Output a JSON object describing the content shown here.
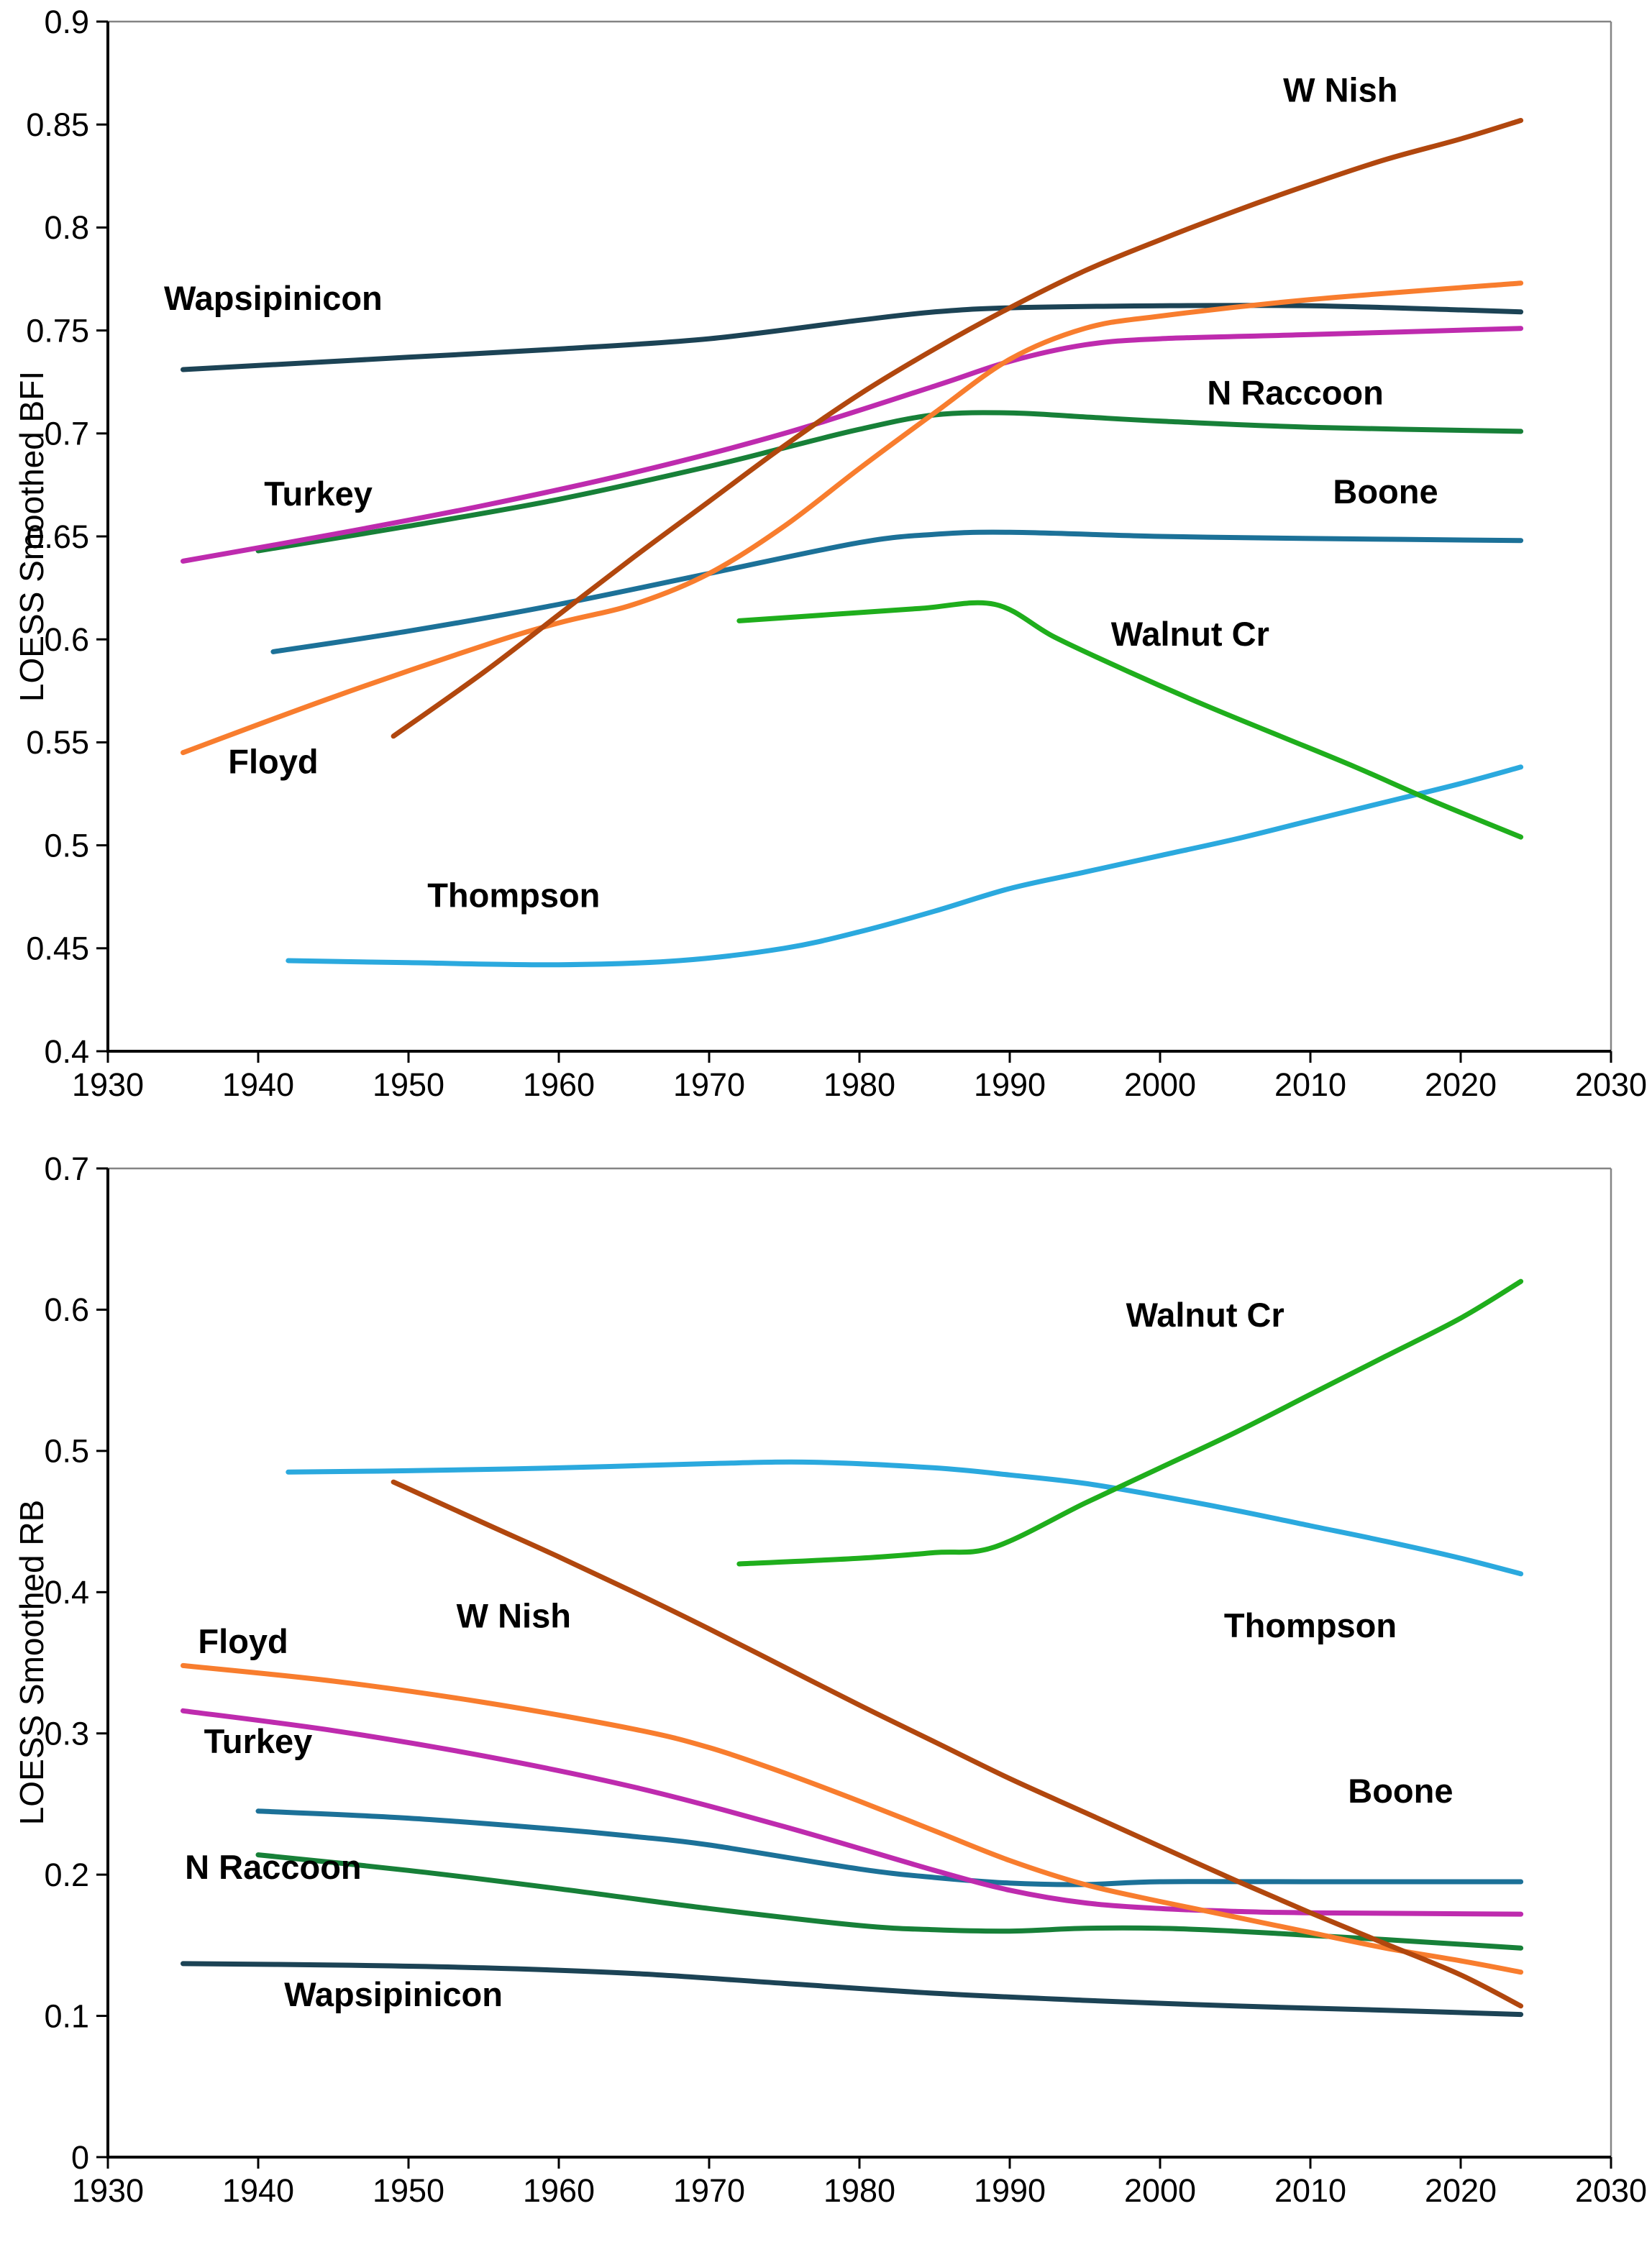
{
  "page": {
    "background": "#FFFFFF"
  },
  "style": {
    "axis_color": "#000000",
    "border_color": "#848484",
    "text_color": "#000000"
  },
  "chart_data": [
    {
      "type": "line",
      "title": "",
      "xlabel": "",
      "ylabel": "LOESS Smoothed BFI",
      "xlim": [
        1930,
        2030
      ],
      "ylim": [
        0.4,
        0.9
      ],
      "grid": false,
      "legend": "inline-series-labels",
      "xtick_values": [
        1930,
        1940,
        1950,
        1960,
        1970,
        1980,
        1990,
        2000,
        2010,
        2020,
        2030
      ],
      "xtick_labels": [
        "1930",
        "1940",
        "1950",
        "1960",
        "1970",
        "1980",
        "1990",
        "2000",
        "2010",
        "2020",
        "2030"
      ],
      "ytick_values": [
        0.9,
        0.85,
        0.8,
        0.75,
        0.7,
        0.65,
        0.6,
        0.55,
        0.5,
        0.45,
        0.4
      ],
      "ytick_labels": [
        "0.9",
        "0.85",
        "0.8",
        "0.75",
        "0.7",
        "0.65",
        "0.6",
        "0.55",
        "0.5",
        "0.45",
        "0.4"
      ],
      "series": [
        {
          "id": "wapsipinicon",
          "name": "Wapsipinicon",
          "color": "#1C4355",
          "x": [
            1935,
            1940,
            1950,
            1960,
            1970,
            1980,
            1985,
            1990,
            2000,
            2010,
            2020,
            2024
          ],
          "y": [
            0.731,
            0.733,
            0.737,
            0.741,
            0.746,
            0.755,
            0.759,
            0.761,
            0.762,
            0.762,
            0.76,
            0.759
          ],
          "label": {
            "text": "Wapsipinicon",
            "x": 1941,
            "y": 0.76
          }
        },
        {
          "id": "n_raccoon",
          "name": "N Raccoon",
          "color": "#178038",
          "x": [
            1940,
            1950,
            1960,
            1970,
            1975,
            1980,
            1985,
            1990,
            1995,
            2000,
            2010,
            2024
          ],
          "y": [
            0.643,
            0.655,
            0.668,
            0.684,
            0.693,
            0.702,
            0.709,
            0.71,
            0.708,
            0.706,
            0.703,
            0.701
          ],
          "label": {
            "text": "N Raccoon",
            "x": 2009,
            "y": 0.714
          }
        },
        {
          "id": "boone",
          "name": "Boone",
          "color": "#1C7198",
          "x": [
            1941,
            1950,
            1960,
            1970,
            1980,
            1985,
            1990,
            2000,
            2010,
            2024
          ],
          "y": [
            0.594,
            0.604,
            0.617,
            0.632,
            0.647,
            0.651,
            0.652,
            0.65,
            0.649,
            0.648
          ],
          "label": {
            "text": "Boone",
            "x": 2015,
            "y": 0.666
          }
        },
        {
          "id": "turkey",
          "name": "Turkey",
          "color": "#BE2BAE",
          "x": [
            1935,
            1945,
            1955,
            1965,
            1975,
            1985,
            1990,
            1995,
            2000,
            2010,
            2024
          ],
          "y": [
            0.638,
            0.651,
            0.665,
            0.681,
            0.7,
            0.723,
            0.735,
            0.743,
            0.746,
            0.748,
            0.751
          ],
          "label": {
            "text": "Turkey",
            "x": 1944,
            "y": 0.665
          }
        },
        {
          "id": "floyd",
          "name": "Floyd",
          "color": "#F87D2E",
          "x": [
            1935,
            1945,
            1955,
            1960,
            1965,
            1970,
            1975,
            1980,
            1985,
            1990,
            1995,
            2000,
            2010,
            2024
          ],
          "y": [
            0.545,
            0.572,
            0.597,
            0.608,
            0.617,
            0.632,
            0.655,
            0.683,
            0.71,
            0.736,
            0.751,
            0.757,
            0.765,
            0.773
          ],
          "label": {
            "text": "Floyd",
            "x": 1941,
            "y": 0.535
          }
        },
        {
          "id": "thompson",
          "name": "Thompson",
          "color": "#2BA9DE",
          "x": [
            1942,
            1950,
            1960,
            1968,
            1975,
            1980,
            1985,
            1990,
            1995,
            2000,
            2005,
            2010,
            2015,
            2020,
            2024
          ],
          "y": [
            0.444,
            0.443,
            0.442,
            0.444,
            0.45,
            0.458,
            0.468,
            0.479,
            0.487,
            0.495,
            0.503,
            0.512,
            0.521,
            0.53,
            0.538
          ],
          "label": {
            "text": "Thompson",
            "x": 1957,
            "y": 0.47
          }
        },
        {
          "id": "walnut_cr",
          "name": "Walnut Cr",
          "color": "#1FAE1C",
          "x": [
            1972,
            1978,
            1984,
            1989,
            1993,
            1998,
            2003,
            2008,
            2013,
            2018,
            2024
          ],
          "y": [
            0.609,
            0.612,
            0.615,
            0.617,
            0.601,
            0.584,
            0.568,
            0.553,
            0.538,
            0.522,
            0.504
          ],
          "label": {
            "text": "Walnut Cr",
            "x": 2002,
            "y": 0.597
          }
        },
        {
          "id": "w_nish",
          "name": "W Nish",
          "color": "#B1470E",
          "x": [
            1949,
            1955,
            1960,
            1965,
            1970,
            1975,
            1980,
            1985,
            1990,
            1995,
            2000,
            2005,
            2010,
            2015,
            2020,
            2024
          ],
          "y": [
            0.553,
            0.584,
            0.612,
            0.64,
            0.667,
            0.694,
            0.719,
            0.741,
            0.761,
            0.779,
            0.794,
            0.808,
            0.821,
            0.833,
            0.843,
            0.852
          ],
          "label": {
            "text": "W Nish",
            "x": 2012,
            "y": 0.861
          }
        }
      ]
    },
    {
      "type": "line",
      "title": "",
      "xlabel": "",
      "ylabel": "LOESS Smoothed RB",
      "xlim": [
        1930,
        2030
      ],
      "ylim": [
        0,
        0.7
      ],
      "grid": false,
      "legend": "inline-series-labels",
      "xtick_values": [
        1930,
        1940,
        1950,
        1960,
        1970,
        1980,
        1990,
        2000,
        2010,
        2020,
        2030
      ],
      "xtick_labels": [
        "1930",
        "1940",
        "1950",
        "1960",
        "1970",
        "1980",
        "1990",
        "2000",
        "2010",
        "2020",
        "2030"
      ],
      "ytick_values": [
        0.7,
        0.6,
        0.5,
        0.4,
        0.3,
        0.2,
        0.1,
        0
      ],
      "ytick_labels": [
        "0.7",
        "0.6",
        "0.5",
        "0.4",
        "0.3",
        "0.2",
        "0.1",
        "0"
      ],
      "series": [
        {
          "id": "wapsipinicon",
          "name": "Wapsipinicon",
          "color": "#1C4355",
          "x": [
            1935,
            1945,
            1955,
            1965,
            1975,
            1985,
            1995,
            2005,
            2015,
            2024
          ],
          "y": [
            0.137,
            0.136,
            0.134,
            0.13,
            0.123,
            0.116,
            0.111,
            0.107,
            0.104,
            0.101
          ],
          "label": {
            "text": "Wapsipinicon",
            "x": 1949,
            "y": 0.107
          }
        },
        {
          "id": "n_raccoon",
          "name": "N Raccoon",
          "color": "#178038",
          "x": [
            1940,
            1950,
            1960,
            1970,
            1980,
            1985,
            1990,
            1995,
            2000,
            2005,
            2010,
            2015,
            2024
          ],
          "y": [
            0.214,
            0.203,
            0.19,
            0.176,
            0.164,
            0.161,
            0.16,
            0.162,
            0.162,
            0.16,
            0.157,
            0.154,
            0.148
          ],
          "label": {
            "text": "N Raccoon",
            "x": 1941,
            "y": 0.197
          }
        },
        {
          "id": "boone",
          "name": "Boone",
          "color": "#1C7198",
          "x": [
            1940,
            1950,
            1960,
            1965,
            1970,
            1980,
            1985,
            1990,
            1995,
            2000,
            2010,
            2020,
            2024
          ],
          "y": [
            0.245,
            0.24,
            0.232,
            0.227,
            0.221,
            0.204,
            0.198,
            0.194,
            0.193,
            0.195,
            0.195,
            0.195,
            0.195
          ],
          "label": {
            "text": "Boone",
            "x": 2016,
            "y": 0.251
          }
        },
        {
          "id": "turkey",
          "name": "Turkey",
          "color": "#BE2BAE",
          "x": [
            1935,
            1945,
            1955,
            1965,
            1975,
            1985,
            1990,
            1995,
            2000,
            2005,
            2010,
            2024
          ],
          "y": [
            0.316,
            0.302,
            0.284,
            0.262,
            0.234,
            0.203,
            0.189,
            0.18,
            0.176,
            0.174,
            0.173,
            0.172
          ],
          "label": {
            "text": "Turkey",
            "x": 1940,
            "y": 0.286
          }
        },
        {
          "id": "floyd",
          "name": "Floyd",
          "color": "#F87D2E",
          "x": [
            1935,
            1945,
            1955,
            1965,
            1970,
            1975,
            1980,
            1985,
            1990,
            1995,
            2000,
            2005,
            2010,
            2015,
            2020,
            2024
          ],
          "y": [
            0.348,
            0.337,
            0.322,
            0.303,
            0.29,
            0.272,
            0.252,
            0.231,
            0.21,
            0.193,
            0.181,
            0.17,
            0.159,
            0.148,
            0.139,
            0.131
          ],
          "label": {
            "text": "Floyd",
            "x": 1939,
            "y": 0.357
          }
        },
        {
          "id": "thompson",
          "name": "Thompson",
          "color": "#2BA9DE",
          "x": [
            1942,
            1950,
            1960,
            1970,
            1977,
            1985,
            1990,
            1995,
            2000,
            2005,
            2010,
            2015,
            2020,
            2024
          ],
          "y": [
            0.485,
            0.486,
            0.488,
            0.491,
            0.492,
            0.488,
            0.483,
            0.477,
            0.468,
            0.458,
            0.447,
            0.436,
            0.424,
            0.413
          ],
          "label": {
            "text": "Thompson",
            "x": 2010,
            "y": 0.368
          }
        },
        {
          "id": "walnut_cr",
          "name": "Walnut Cr",
          "color": "#1FAE1C",
          "x": [
            1972,
            1980,
            1985,
            1989,
            1995,
            2000,
            2005,
            2010,
            2015,
            2020,
            2024
          ],
          "y": [
            0.42,
            0.424,
            0.428,
            0.432,
            0.463,
            0.488,
            0.513,
            0.54,
            0.567,
            0.594,
            0.62
          ],
          "label": {
            "text": "Walnut Cr",
            "x": 2003,
            "y": 0.588
          }
        },
        {
          "id": "w_nish",
          "name": "W Nish",
          "color": "#B1470E",
          "x": [
            1949,
            1955,
            1960,
            1965,
            1970,
            1975,
            1980,
            1985,
            1990,
            1995,
            2000,
            2005,
            2010,
            2015,
            2020,
            2024
          ],
          "y": [
            0.478,
            0.449,
            0.425,
            0.4,
            0.374,
            0.347,
            0.32,
            0.294,
            0.268,
            0.244,
            0.22,
            0.196,
            0.173,
            0.151,
            0.129,
            0.107
          ],
          "label": {
            "text": "W Nish",
            "x": 1957,
            "y": 0.375
          }
        }
      ]
    }
  ]
}
